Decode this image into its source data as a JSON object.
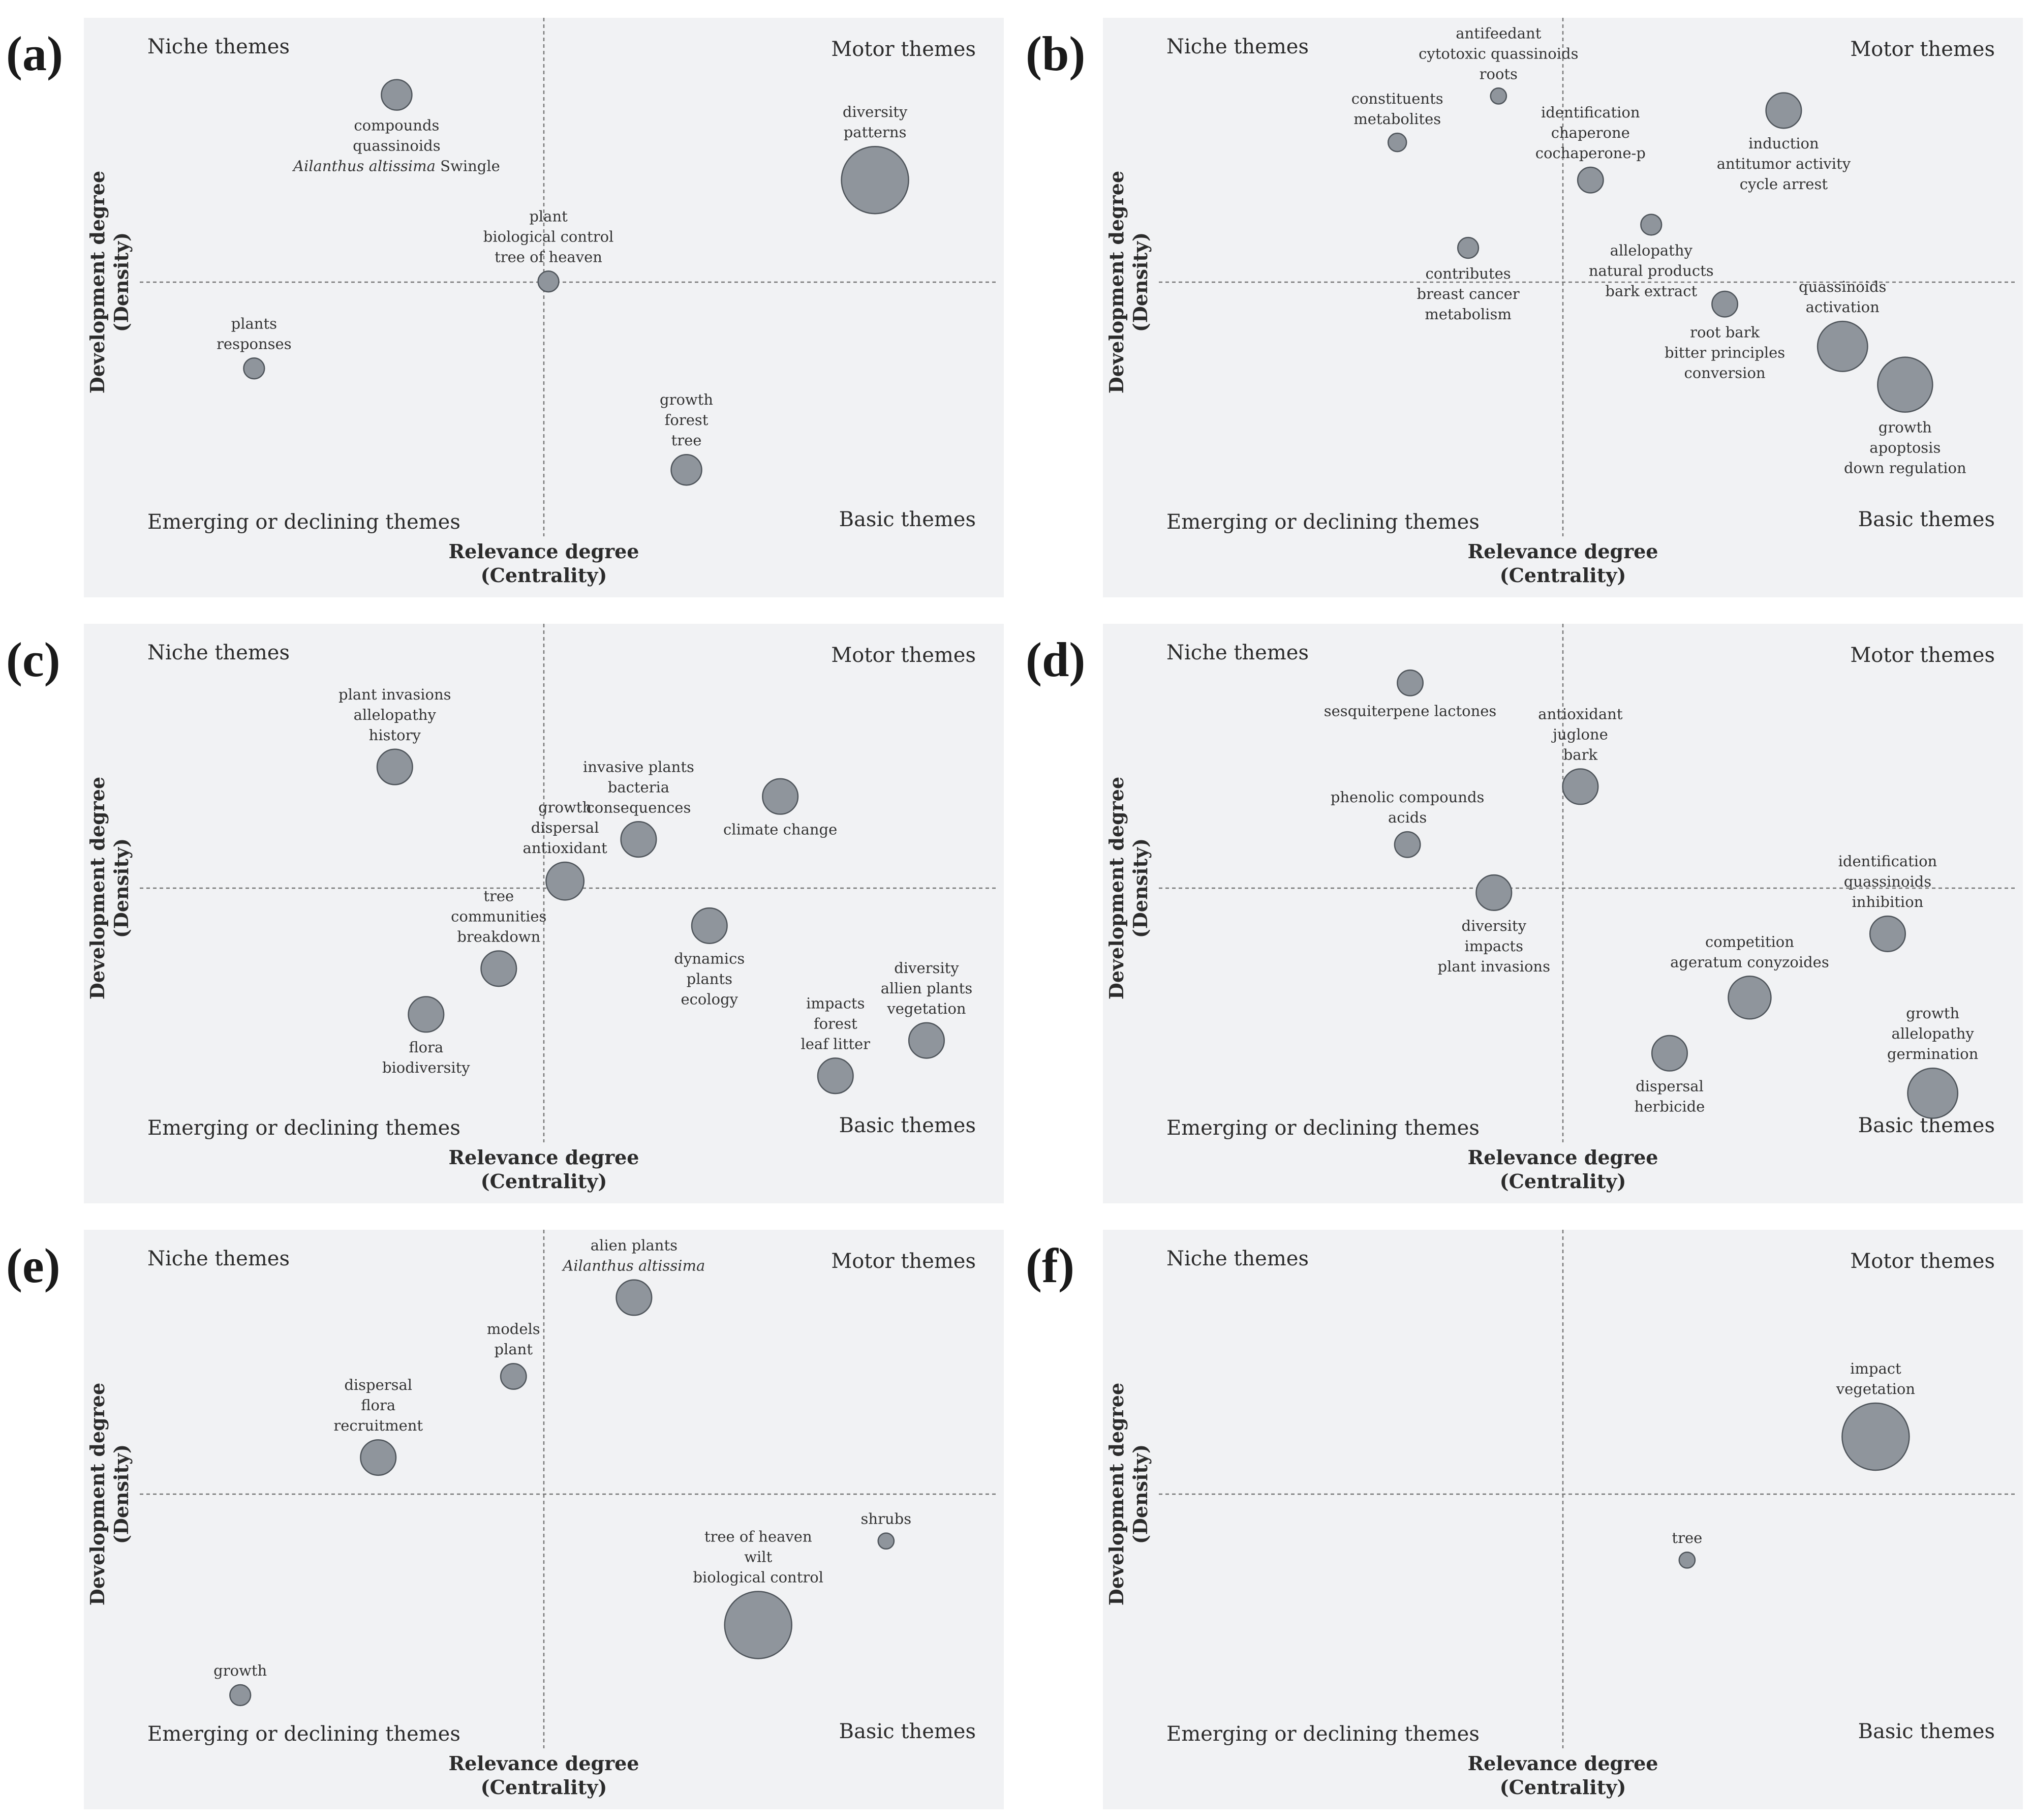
{
  "quadrants": {
    "niche": "Niche themes",
    "motor": "Motor themes",
    "emerging": "Emerging or declining themes",
    "basic": "Basic themes"
  },
  "axes": {
    "x_title": [
      "Relevance degree",
      "(Centrality)"
    ],
    "y_title": [
      "Development degree",
      "(Density)"
    ]
  },
  "colors": {
    "bubble_fill": "#8f959c",
    "bubble_stroke": "#4f555b",
    "background": "#f1f2f4"
  },
  "chart_data": [
    {
      "panel": "(a)",
      "type": "scatter",
      "xlim": [
        0,
        1
      ],
      "ylim": [
        0,
        1
      ],
      "points": [
        {
          "x": 0.34,
          "y": 0.867,
          "size": 10,
          "label": [
            "compounds",
            "quassinoids",
            "Ailanthus altissima Swingle"
          ],
          "italic_line": 2,
          "italic_part": "Ailanthus altissima",
          "pos": "below"
        },
        {
          "x": 0.86,
          "y": 0.72,
          "size": 25,
          "label": [
            "diversity",
            "patterns"
          ],
          "pos": "above"
        },
        {
          "x": 0.505,
          "y": 0.545,
          "size": 6,
          "label": [
            "plant",
            "biological control",
            "tree of heaven"
          ],
          "pos": "above"
        },
        {
          "x": 0.185,
          "y": 0.395,
          "size": 6,
          "label": [
            "plants",
            "responses"
          ],
          "pos": "above"
        },
        {
          "x": 0.655,
          "y": 0.22,
          "size": 10,
          "label": [
            "growth",
            "forest",
            "tree"
          ],
          "pos": "above"
        }
      ]
    },
    {
      "panel": "(b)",
      "type": "scatter",
      "xlim": [
        0,
        1
      ],
      "ylim": [
        0,
        1
      ],
      "points": [
        {
          "x": 0.43,
          "y": 0.865,
          "size": 4,
          "label": [
            "antifeedant",
            "cytotoxic quassinoids",
            "roots"
          ],
          "pos": "above"
        },
        {
          "x": 0.32,
          "y": 0.785,
          "size": 5,
          "label": [
            "constituents",
            "metabolites"
          ],
          "pos": "above"
        },
        {
          "x": 0.53,
          "y": 0.72,
          "size": 8,
          "label": [
            "identification",
            "chaperone",
            "cochaperone-p"
          ],
          "pos": "above"
        },
        {
          "x": 0.74,
          "y": 0.84,
          "size": 12,
          "label": [
            "induction",
            "antitumor activity",
            "cycle arrest"
          ],
          "pos": "below"
        },
        {
          "x": 0.596,
          "y": 0.643,
          "size": 6,
          "label": [
            "allelopathy",
            "natural products",
            "bark extract"
          ],
          "pos": "below"
        },
        {
          "x": 0.397,
          "y": 0.603,
          "size": 6,
          "label": [
            "contributes",
            "breast cancer",
            "metabolism"
          ],
          "pos": "below"
        },
        {
          "x": 0.676,
          "y": 0.506,
          "size": 8,
          "label": [
            "root bark",
            "bitter principles",
            "conversion"
          ],
          "pos": "below"
        },
        {
          "x": 0.804,
          "y": 0.433,
          "size": 18,
          "label": [
            "quassinoids",
            "activation"
          ],
          "pos": "above"
        },
        {
          "x": 0.872,
          "y": 0.367,
          "size": 20,
          "label": [
            "growth",
            "apoptosis",
            "down regulation"
          ],
          "pos": "below"
        }
      ]
    },
    {
      "panel": "(c)",
      "type": "scatter",
      "xlim": [
        0,
        1
      ],
      "ylim": [
        0,
        1
      ],
      "points": [
        {
          "x": 0.338,
          "y": 0.753,
          "size": 12,
          "label": [
            "plant invasions",
            "allelopathy",
            "history"
          ],
          "pos": "above"
        },
        {
          "x": 0.757,
          "y": 0.702,
          "size": 12,
          "label": [
            "climate change"
          ],
          "pos": "below"
        },
        {
          "x": 0.603,
          "y": 0.628,
          "size": 12,
          "label": [
            "invasive plants",
            "bacteria",
            "consequences"
          ],
          "pos": "above"
        },
        {
          "x": 0.523,
          "y": 0.556,
          "size": 13,
          "label": [
            "growth",
            "dispersal",
            "antioxidant"
          ],
          "pos": "above"
        },
        {
          "x": 0.68,
          "y": 0.479,
          "size": 12,
          "label": [
            "dynamics",
            "plants",
            "ecology"
          ],
          "pos": "below"
        },
        {
          "x": 0.451,
          "y": 0.405,
          "size": 12,
          "label": [
            "tree",
            "communities",
            "breakdown"
          ],
          "pos": "above"
        },
        {
          "x": 0.372,
          "y": 0.326,
          "size": 12,
          "label": [
            "flora",
            "biodiversity"
          ],
          "pos": "below"
        },
        {
          "x": 0.916,
          "y": 0.281,
          "size": 12,
          "label": [
            "diversity",
            "allien plants",
            "vegetation"
          ],
          "pos": "above"
        },
        {
          "x": 0.817,
          "y": 0.22,
          "size": 12,
          "label": [
            "impacts",
            "forest",
            "leaf litter"
          ],
          "pos": "above"
        }
      ]
    },
    {
      "panel": "(d)",
      "type": "scatter",
      "xlim": [
        0,
        1
      ],
      "ylim": [
        0,
        1
      ],
      "points": [
        {
          "x": 0.334,
          "y": 0.898,
          "size": 8,
          "label": [
            "sesquiterpene lactones"
          ],
          "pos": "below"
        },
        {
          "x": 0.519,
          "y": 0.719,
          "size": 12,
          "label": [
            "antioxidant",
            "juglone",
            "bark"
          ],
          "pos": "above"
        },
        {
          "x": 0.331,
          "y": 0.619,
          "size": 8,
          "label": [
            "phenolic compounds",
            "acids"
          ],
          "pos": "above"
        },
        {
          "x": 0.425,
          "y": 0.536,
          "size": 12,
          "label": [
            "diversity",
            "impacts",
            "plant invasions"
          ],
          "pos": "below"
        },
        {
          "x": 0.853,
          "y": 0.465,
          "size": 12,
          "label": [
            "identification",
            "quassinoids",
            "inhibition"
          ],
          "pos": "above"
        },
        {
          "x": 0.703,
          "y": 0.355,
          "size": 15,
          "label": [
            "competition",
            "ageratum conyzoides"
          ],
          "pos": "above"
        },
        {
          "x": 0.616,
          "y": 0.259,
          "size": 12,
          "label": [
            "dispersal",
            "herbicide"
          ],
          "pos": "below"
        },
        {
          "x": 0.902,
          "y": 0.19,
          "size": 18,
          "label": [
            "growth",
            "allelopathy",
            "germination"
          ],
          "pos": "above"
        }
      ]
    },
    {
      "panel": "(e)",
      "type": "scatter",
      "xlim": [
        0,
        1
      ],
      "ylim": [
        0,
        1
      ],
      "points": [
        {
          "x": 0.598,
          "y": 0.883,
          "size": 12,
          "label": [
            "alien plants",
            "Ailanthus altissima"
          ],
          "italic_line": 1,
          "italic_part": "Ailanthus altissima",
          "pos": "above"
        },
        {
          "x": 0.467,
          "y": 0.747,
          "size": 8,
          "label": [
            "models",
            "plant"
          ],
          "pos": "above"
        },
        {
          "x": 0.32,
          "y": 0.607,
          "size": 12,
          "label": [
            "dispersal",
            "flora",
            "recruitment"
          ],
          "pos": "above"
        },
        {
          "x": 0.872,
          "y": 0.463,
          "size": 4,
          "label": [
            "shrubs"
          ],
          "pos": "above"
        },
        {
          "x": 0.733,
          "y": 0.318,
          "size": 25,
          "label": [
            "tree of heaven",
            "wilt",
            "biological control"
          ],
          "pos": "above"
        },
        {
          "x": 0.17,
          "y": 0.197,
          "size": 6,
          "label": [
            "growth"
          ],
          "pos": "above"
        }
      ]
    },
    {
      "panel": "(f)",
      "type": "scatter",
      "xlim": [
        0,
        1
      ],
      "ylim": [
        0,
        1
      ],
      "points": [
        {
          "x": 0.84,
          "y": 0.643,
          "size": 25,
          "label": [
            "impact",
            "vegetation"
          ],
          "pos": "above"
        },
        {
          "x": 0.635,
          "y": 0.43,
          "size": 4,
          "label": [
            "tree"
          ],
          "pos": "above"
        }
      ]
    }
  ]
}
